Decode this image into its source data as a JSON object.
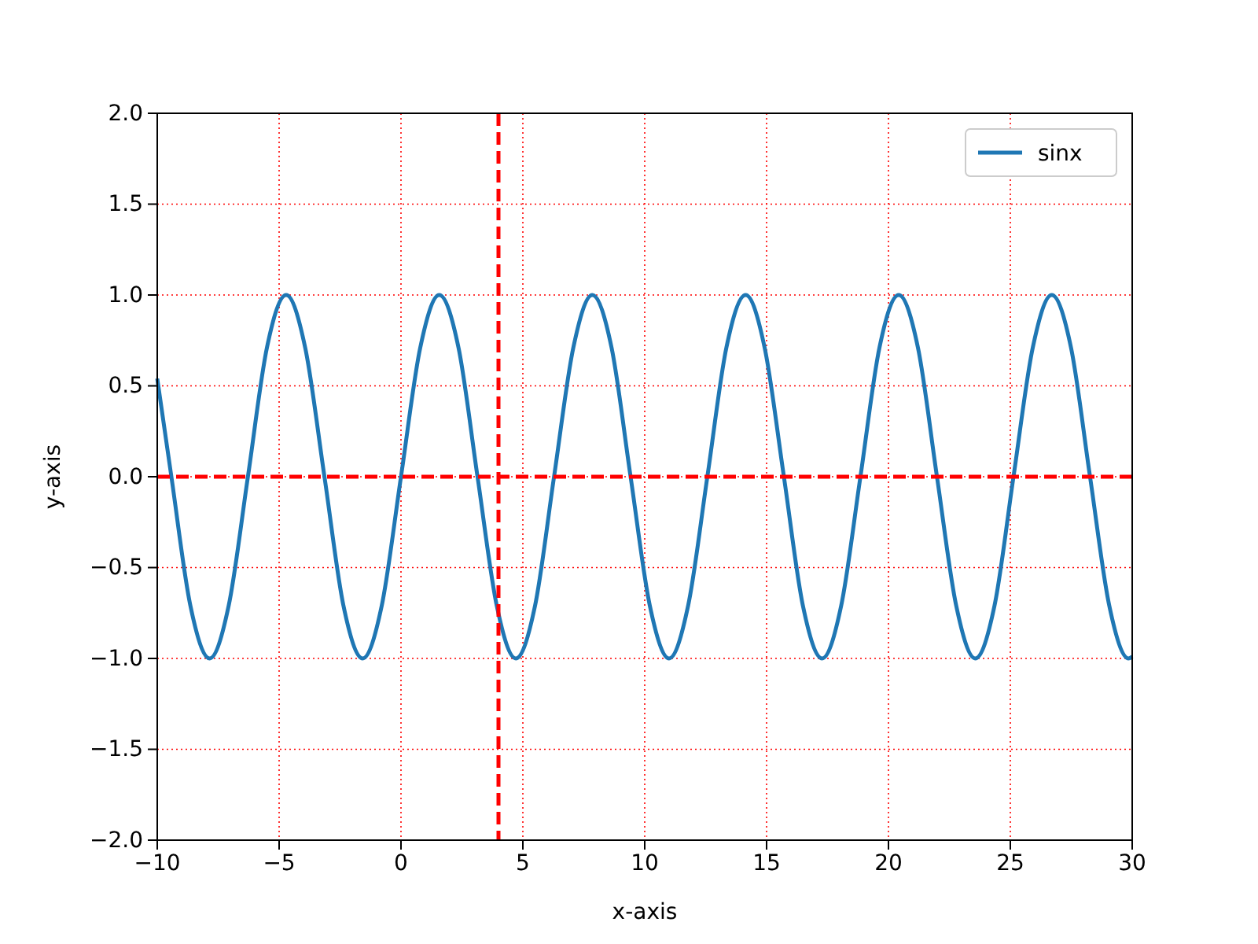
{
  "chart_data": {
    "type": "line",
    "xlabel": "x-axis",
    "ylabel": "y-axis",
    "xlim": [
      -10,
      30
    ],
    "xticks": [
      -10,
      -5,
      0,
      5,
      10,
      15,
      20,
      25,
      30
    ],
    "ylim": [
      -2,
      2
    ],
    "yticks": [
      {
        "value": -2,
        "label": "−2.0"
      },
      {
        "value": -1.5,
        "label": "−1.5"
      },
      {
        "value": -1,
        "label": "−1.0"
      },
      {
        "value": -0.5,
        "label": "−0.5"
      },
      {
        "value": 0,
        "label": "0.0"
      },
      {
        "value": 0.5,
        "label": "0.5"
      },
      {
        "value": 1,
        "label": "1.0"
      },
      {
        "value": 1.5,
        "label": "1.5"
      },
      {
        "value": 2,
        "label": "2.0"
      }
    ],
    "grid": true,
    "legend": "top right",
    "line_style": "solid",
    "ref_lines": [
      {
        "axis": "x",
        "value": 4,
        "color": "#ff0000",
        "line_style": "dashed"
      },
      {
        "axis": "y",
        "value": 0,
        "color": "#ff0000",
        "line_style": "dashed"
      }
    ],
    "series": [
      {
        "name": "sinx",
        "color": "#1f77b4",
        "x": [
          -10,
          -9.42,
          -8.64,
          -7.85,
          -7.07,
          -6.28,
          -5.5,
          -4.71,
          -3.93,
          -3.14,
          -2.36,
          -1.57,
          -0.79,
          0,
          0.79,
          1.57,
          2.36,
          3.14,
          3.93,
          4.71,
          5.5,
          6.28,
          7.07,
          7.85,
          8.64,
          9.42,
          10.21,
          11.0,
          11.78,
          12.57,
          13.35,
          14.14,
          14.92,
          15.71,
          16.49,
          17.28,
          18.06,
          18.85,
          19.63,
          20.42,
          21.21,
          21.99,
          22.78,
          23.56,
          24.35,
          25.13,
          25.92,
          26.7,
          27.49,
          28.27,
          29.06,
          29.85,
          30
        ],
        "values": [
          0.54,
          0,
          -0.71,
          -1,
          -0.71,
          0,
          0.71,
          1,
          0.71,
          0,
          -0.71,
          -1,
          -0.71,
          0,
          0.71,
          1,
          0.71,
          0,
          -0.71,
          -1,
          -0.71,
          0,
          0.71,
          1,
          0.71,
          0,
          -0.71,
          -1,
          -0.71,
          0,
          0.71,
          1,
          0.71,
          0,
          -0.71,
          -1,
          -0.71,
          0,
          0.71,
          1,
          0.71,
          0,
          -0.71,
          -1,
          -0.71,
          0,
          0.71,
          1,
          0.71,
          0,
          -0.71,
          -1,
          -0.99
        ]
      }
    ]
  }
}
